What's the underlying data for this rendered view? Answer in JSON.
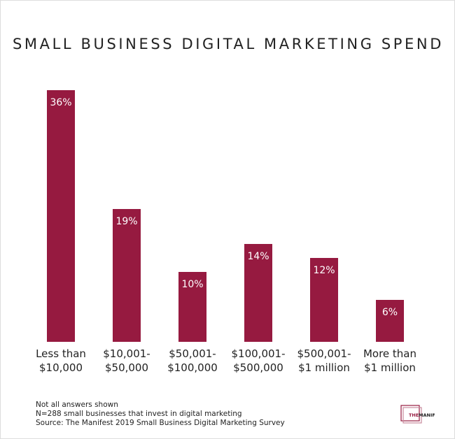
{
  "chart_data": {
    "type": "bar",
    "title": "SMALL BUSINESS DIGITAL MARKETING SPEND",
    "categories": [
      [
        "Less than",
        "$10,000"
      ],
      [
        "$10,001-",
        "$50,000"
      ],
      [
        "$50,001-",
        "$100,000"
      ],
      [
        "$100,001-",
        "$500,000"
      ],
      [
        "$500,001-",
        "$1 million"
      ],
      [
        "More than",
        "$1 million"
      ]
    ],
    "values": [
      36,
      19,
      10,
      14,
      12,
      6
    ],
    "data_labels": [
      "36%",
      "19%",
      "10%",
      "14%",
      "12%",
      "6%"
    ],
    "unit": "%",
    "ylim": [
      0,
      36
    ],
    "grid": false,
    "bar_color": "#961a40"
  },
  "notes": [
    "Not all answers shown",
    "N=288 small businesses that invest in digital marketing",
    "Source: The Manifest 2019 Small Business Digital Marketing Survey"
  ],
  "logo": {
    "text_the": "THE",
    "text_manifest": "MANIFEST",
    "color": "#961a40"
  }
}
